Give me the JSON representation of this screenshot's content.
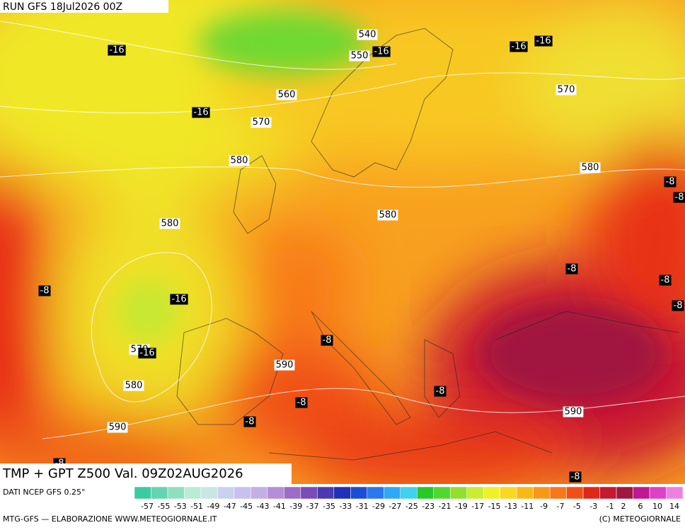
{
  "header": {
    "run": "RUN GFS 18Jul2026 00Z",
    "product": "TMP + GPT Z500 Val. 09Z02AUG2026"
  },
  "map": {
    "gpt_labels": [
      540,
      550,
      560,
      570,
      570,
      580,
      580,
      580,
      580,
      570,
      580,
      590,
      590,
      590
    ],
    "temp_labels": [
      -16,
      -16,
      -16,
      -16,
      -16,
      -8,
      -8,
      -8,
      -16,
      -8,
      -8,
      -8,
      -16,
      -8,
      -8,
      -8,
      -8,
      -8,
      -8
    ]
  },
  "legend": {
    "source": "DATI NCEP GFS 0.25°",
    "colors": [
      "#3ccba0",
      "#62d6b0",
      "#8fe0c0",
      "#b8ecd6",
      "#c8e6e6",
      "#c8d2ee",
      "#c8c0ee",
      "#c4aee6",
      "#b48ed6",
      "#9c6cc8",
      "#7a4cb8",
      "#4a3cb0",
      "#2030b8",
      "#1a4ed8",
      "#2a78f0",
      "#30a8f8",
      "#40d0f0",
      "#28c828",
      "#50d830",
      "#90e030",
      "#c8ee30",
      "#f0f028",
      "#f8d820",
      "#f8b818",
      "#f89818",
      "#f87818",
      "#f05018",
      "#e02818",
      "#c81830",
      "#a01840",
      "#c01890",
      "#e040c8",
      "#f080e0"
    ],
    "labels": [
      -57,
      -55,
      -53,
      -51,
      -49,
      -47,
      -45,
      -43,
      -41,
      -39,
      -37,
      -35,
      -33,
      -31,
      -29,
      -27,
      -25,
      -23,
      -21,
      -19,
      -17,
      -15,
      -13,
      -11,
      -9,
      -7,
      -5,
      -3,
      -1,
      2,
      6,
      10,
      14
    ]
  },
  "footer": {
    "credit": "MTG-GFS — ELABORAZIONE WWW.METEOGIORNALE.IT",
    "copyright": "(C) METEOGIORNALE"
  }
}
